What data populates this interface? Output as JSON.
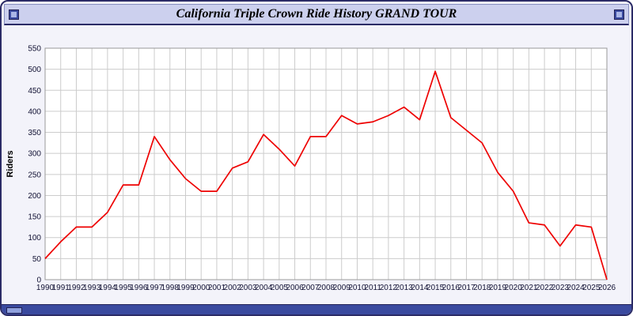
{
  "header": {
    "title": "California Triple Crown Ride History GRAND TOUR"
  },
  "colors": {
    "frame_border": "#2b2b66",
    "titlebar_bg": "#ccd0ee",
    "panel_bg": "#f3f3fa",
    "plot_bg": "#ffffff",
    "gridline": "#cccccc",
    "series_line": "#ee0000",
    "tick_text": "#111133",
    "bottombar_bg": "#3a4a9f"
  },
  "chart_data": {
    "type": "line",
    "title": "California Triple Crown Ride History GRAND TOUR",
    "xlabel": "",
    "ylabel": "Riders",
    "ylim": [
      0,
      550
    ],
    "yticks": [
      0,
      50,
      100,
      150,
      200,
      250,
      300,
      350,
      400,
      450,
      500,
      550
    ],
    "grid": true,
    "legend_position": "none",
    "line_color": "#ee0000",
    "categories": [
      "1990",
      "1991",
      "1992",
      "1993",
      "1994",
      "1995",
      "1996",
      "1997",
      "1998",
      "1999",
      "2000",
      "2001",
      "2002",
      "2003",
      "2004",
      "2005",
      "2006",
      "2007",
      "2008",
      "2009",
      "2010",
      "2011",
      "2012",
      "2013",
      "2014",
      "2015",
      "2016",
      "2017",
      "2018",
      "2019",
      "2020",
      "2021",
      "2022",
      "2023",
      "2024",
      "2025",
      "2026"
    ],
    "values": [
      50,
      90,
      125,
      125,
      160,
      225,
      225,
      340,
      285,
      240,
      210,
      210,
      265,
      280,
      345,
      310,
      270,
      340,
      340,
      390,
      370,
      375,
      390,
      410,
      380,
      495,
      385,
      355,
      325,
      255,
      210,
      135,
      130,
      80,
      130,
      125,
      0
    ]
  }
}
